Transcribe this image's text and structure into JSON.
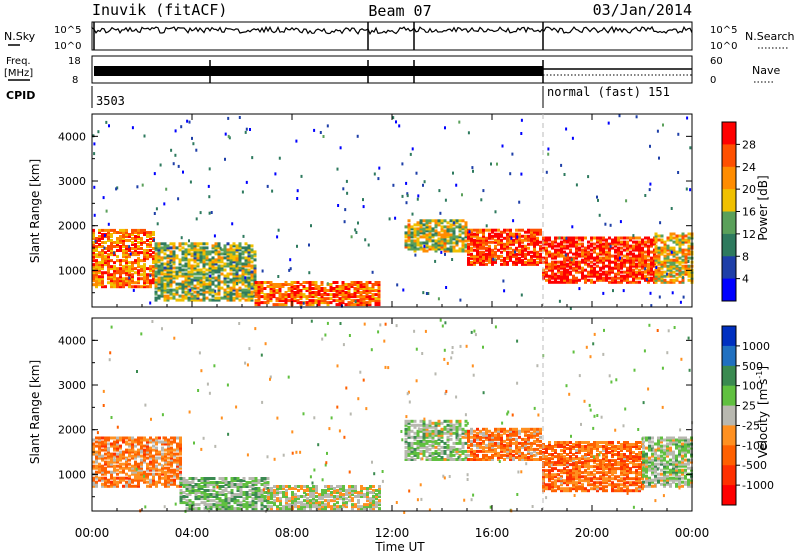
{
  "header": {
    "radar_title": "Inuvik (fitACF)",
    "beam": "Beam 07",
    "date": "03/Jan/2014"
  },
  "status_panels": {
    "nsky_label": "N.Sky",
    "nsearch_label": "N.Search",
    "freq_label_top": "Freq.",
    "freq_label_unit": "[MHz]",
    "nave_label": "Nave",
    "cpid_label": "CPID",
    "noise_ticks_left": [
      "10^5",
      "10^0"
    ],
    "noise_ticks_right": [
      "10^5",
      "10^0"
    ],
    "freq_ticks": [
      "18",
      "8"
    ],
    "nave_ticks": [
      "60",
      "0"
    ],
    "cpid_values": [
      "3503",
      "normal (fast) 151"
    ]
  },
  "colors": {
    "power": [
      "#0000ff",
      "#1e3fa8",
      "#2e7a5e",
      "#5aa05a",
      "#f0c000",
      "#ff8c00",
      "#ff5000",
      "#ff0000"
    ],
    "velocity": [
      "#0030c0",
      "#2070c0",
      "#3a8a50",
      "#60c040",
      "#b8b8b0",
      "#ff9020",
      "#ff6000",
      "#ff3000",
      "#ff0000"
    ]
  },
  "chart_data": [
    {
      "type": "heatmap",
      "title": "",
      "xlabel": "",
      "ylabel": "Slant Range [km]",
      "ylim": [
        180,
        4500
      ],
      "xlim": [
        "00:00",
        "24:00"
      ],
      "yticks": [
        "1000",
        "2000",
        "3000",
        "4000"
      ],
      "colorbar": {
        "label": "Power [dB]",
        "ticks": [
          "4",
          "8",
          "12",
          "16",
          "20",
          "24",
          "28"
        ],
        "range": [
          0,
          30
        ]
      },
      "echo_regions": [
        {
          "t0": 0.0,
          "t1": 2.5,
          "r0": 600,
          "r1": 1900,
          "value": 22
        },
        {
          "t0": 2.5,
          "t1": 6.5,
          "r0": 300,
          "r1": 1600,
          "value": 14
        },
        {
          "t0": 6.5,
          "t1": 11.5,
          "r0": 200,
          "r1": 700,
          "value": 24
        },
        {
          "t0": 12.5,
          "t1": 15.0,
          "r0": 1400,
          "r1": 2100,
          "value": 16
        },
        {
          "t0": 15.0,
          "t1": 18.0,
          "r0": 1100,
          "r1": 1900,
          "value": 26
        },
        {
          "t0": 18.0,
          "t1": 22.5,
          "r0": 700,
          "r1": 1700,
          "value": 27
        },
        {
          "t0": 22.5,
          "t1": 24.0,
          "r0": 700,
          "r1": 1800,
          "value": 18
        }
      ]
    },
    {
      "type": "heatmap",
      "title": "",
      "xlabel": "Time UT",
      "ylabel": "Slant Range [km]",
      "ylim": [
        180,
        4500
      ],
      "xlim": [
        "00:00",
        "24:00"
      ],
      "xticks": [
        "00:00",
        "04:00",
        "08:00",
        "12:00",
        "16:00",
        "20:00",
        "00:00"
      ],
      "yticks": [
        "1000",
        "2000",
        "3000",
        "4000"
      ],
      "colorbar": {
        "label": "Velocity [m s-1]",
        "label_main": "Velocity",
        "label_unit": "[m s",
        "label_exp": "-1",
        "label_close": "]",
        "ticks": [
          "1000",
          "500",
          "100",
          "25",
          "-25",
          "-100",
          "-500",
          "-1000"
        ],
        "range": [
          -1000,
          1000
        ]
      },
      "echo_regions": [
        {
          "t0": 0.0,
          "t1": 3.5,
          "r0": 700,
          "r1": 1800,
          "value": -300
        },
        {
          "t0": 3.5,
          "t1": 7.0,
          "r0": 200,
          "r1": 900,
          "value": 200
        },
        {
          "t0": 7.0,
          "t1": 11.5,
          "r0": 200,
          "r1": 700,
          "value": 0
        },
        {
          "t0": 12.5,
          "t1": 15.0,
          "r0": 1300,
          "r1": 2200,
          "value": 150
        },
        {
          "t0": 15.0,
          "t1": 18.0,
          "r0": 1300,
          "r1": 2000,
          "value": -350
        },
        {
          "t0": 18.0,
          "t1": 22.0,
          "r0": 600,
          "r1": 1700,
          "value": -400
        },
        {
          "t0": 22.0,
          "t1": 24.0,
          "r0": 700,
          "r1": 1800,
          "value": 120
        }
      ]
    }
  ]
}
